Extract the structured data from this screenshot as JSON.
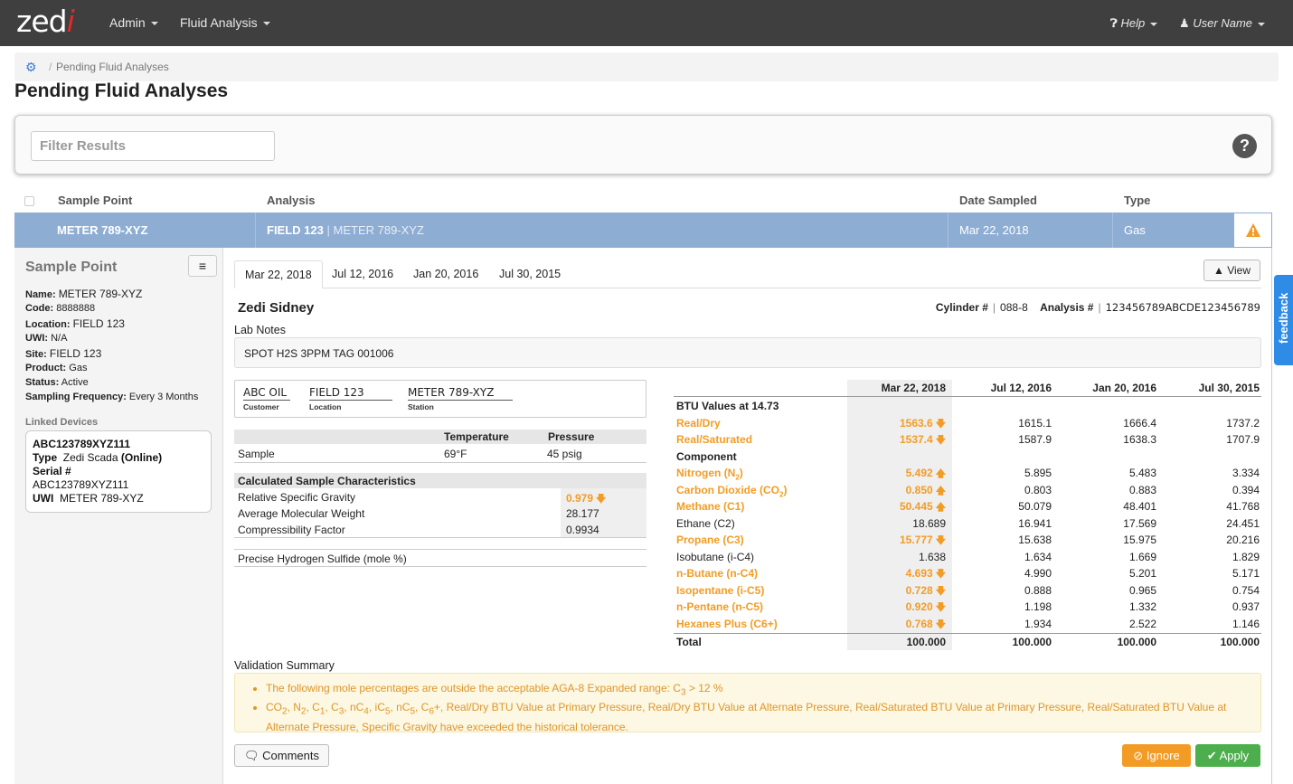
{
  "nav": {
    "logo_main": "zed",
    "logo_i": "i",
    "admin": "Admin",
    "fluid": "Fluid Analysis",
    "help": "Help",
    "user": "User Name"
  },
  "breadcrumb": {
    "sep": "/",
    "current": "Pending Fluid Analyses"
  },
  "page_title": "Pending Fluid Analyses",
  "filter": {
    "placeholder": "Filter Results",
    "help": "?"
  },
  "table": {
    "headers": [
      "Sample Point",
      "Analysis",
      "Date Sampled",
      "Type"
    ],
    "row": {
      "sample_point": "METER 789-XYZ",
      "analysis_field": "FIELD 123",
      "analysis_sep": "|",
      "analysis_meter": "METER 789-XYZ",
      "date": "Mar 22, 2018",
      "type": "Gas"
    }
  },
  "sample_point": {
    "title": "Sample Point",
    "menu": "≡",
    "fields": [
      {
        "label": "Name:",
        "value": "METER 789-XYZ"
      },
      {
        "label": "Code:",
        "value": "8888888"
      },
      {
        "label": "Location:",
        "value": "FIELD 123"
      },
      {
        "label": "UWI:",
        "value": "N/A"
      },
      {
        "label": "Site:",
        "value": "FIELD 123"
      },
      {
        "label": "Product:",
        "value": "Gas"
      },
      {
        "label": "Status:",
        "value": "Active"
      },
      {
        "label": "Sampling Frequency:",
        "value": "Every 3 Months"
      }
    ],
    "linked_label": "Linked Devices",
    "device": {
      "id": "ABC123789XYZ111",
      "type_label": "Type",
      "type_value": "Zedi Scada",
      "type_status": "(Online)",
      "serial_label": "Serial #",
      "serial_value": "ABC123789XYZ111",
      "uwi_label": "UWI",
      "uwi_value": "METER 789-XYZ"
    }
  },
  "tabs": [
    "Mar 22, 2018",
    "Jul 12, 2016",
    "Jan 20, 2016",
    "Jul 30, 2015"
  ],
  "view_btn": "View",
  "lab": {
    "name": "Zedi Sidney",
    "cylinder_label": "Cylinder #",
    "cylinder_value": "088-8",
    "analysis_label": "Analysis #",
    "analysis_value": "123456789ABCDE123456789",
    "notes_label": "Lab Notes",
    "notes": "SPOT H2S 3PPM TAG 001006"
  },
  "customer": {
    "customer": "ABC OIL",
    "customer_label": "Customer",
    "location": "FIELD 123",
    "location_label": "Location",
    "station": "METER 789-XYZ",
    "station_label": "Station"
  },
  "conditions": {
    "temp_header": "Temperature",
    "press_header": "Pressure",
    "row_label": "Sample",
    "temp": "69°F",
    "press": "45 psig"
  },
  "calc": {
    "title": "Calculated Sample Characteristics",
    "rows": [
      {
        "label": "Relative Specific Gravity",
        "value": "0.979"
      },
      {
        "label": "Average Molecular Weight",
        "value": "28.177"
      },
      {
        "label": "Compressibility Factor",
        "value": "0.9934"
      }
    ],
    "h2s": "Precise Hydrogen Sulfide (mole %)"
  },
  "composition": {
    "dates": [
      "Mar 22, 2018",
      "Jul 12, 2016",
      "Jan 20, 2016",
      "Jul 30, 2015"
    ],
    "btu_title": "BTU Values at 14.73",
    "btu_rows": [
      {
        "name": "Real/Dry",
        "vals": [
          "1563.6",
          "1615.1",
          "1666.4",
          "1737.2"
        ],
        "flag": "down"
      },
      {
        "name": "Real/Saturated",
        "vals": [
          "1537.4",
          "1587.9",
          "1638.3",
          "1707.9"
        ],
        "flag": "down"
      }
    ],
    "component_title": "Component",
    "rows": [
      {
        "name": "Nitrogen (N",
        "sub": "2",
        "tail": ")",
        "vals": [
          "5.492",
          "5.895",
          "5.483",
          "3.334"
        ],
        "flag": "up"
      },
      {
        "name": "Carbon Dioxide (CO",
        "sub": "2",
        "tail": ")",
        "vals": [
          "0.850",
          "0.803",
          "0.883",
          "0.394"
        ],
        "flag": "up"
      },
      {
        "name": "Methane (C1)",
        "sub": "",
        "tail": "",
        "vals": [
          "50.445",
          "50.079",
          "48.401",
          "41.768"
        ],
        "flag": "up"
      },
      {
        "name": "Ethane (C2)",
        "sub": "",
        "tail": "",
        "vals": [
          "18.689",
          "16.941",
          "17.569",
          "24.451"
        ],
        "flag": ""
      },
      {
        "name": "Propane (C3)",
        "sub": "",
        "tail": "",
        "vals": [
          "15.777",
          "15.638",
          "15.975",
          "20.216"
        ],
        "flag": "down"
      },
      {
        "name": "Isobutane (i-C4)",
        "sub": "",
        "tail": "",
        "vals": [
          "1.638",
          "1.634",
          "1.669",
          "1.829"
        ],
        "flag": ""
      },
      {
        "name": "n-Butane (n-C4)",
        "sub": "",
        "tail": "",
        "vals": [
          "4.693",
          "4.990",
          "5.201",
          "5.171"
        ],
        "flag": "down"
      },
      {
        "name": "Isopentane (i-C5)",
        "sub": "",
        "tail": "",
        "vals": [
          "0.728",
          "0.888",
          "0.965",
          "0.754"
        ],
        "flag": "down"
      },
      {
        "name": "n-Pentane (n-C5)",
        "sub": "",
        "tail": "",
        "vals": [
          "0.920",
          "1.198",
          "1.332",
          "0.937"
        ],
        "flag": "down"
      },
      {
        "name": "Hexanes Plus (C6+)",
        "sub": "",
        "tail": "",
        "vals": [
          "0.768",
          "1.934",
          "2.522",
          "1.146"
        ],
        "flag": "down"
      }
    ],
    "total_label": "Total",
    "totals": [
      "100.000",
      "100.000",
      "100.000",
      "100.000"
    ]
  },
  "validation": {
    "label": "Validation Summary",
    "item1_pre": "The following mole percentages are outside the acceptable AGA-8 Expanded range: C",
    "item1_sub": "3",
    "item1_post": " > 12 %",
    "item2_html": "CO<sub>2</sub>, N<sub>2</sub>, C<sub>1</sub>, C<sub>3</sub>, nC<sub>4</sub>, iC<sub>5</sub>, nC<sub>5</sub>, C<sub>6</sub>+, Real/Dry BTU Value at Primary Pressure, Real/Dry BTU Value at Alternate Pressure, Real/Saturated BTU Value at Primary Pressure, Real/Saturated BTU Value at Alternate Pressure, Specific Gravity have exceeded the historical tolerance."
  },
  "actions": {
    "comments": "Comments",
    "ignore": "Ignore",
    "apply": "Apply"
  },
  "feedback": "feedback",
  "colors": {
    "nav": "#3f3f3f",
    "selected_row": "#8eadd3",
    "warning": "#f39c25",
    "apply": "#4cae4c",
    "feedback": "#2e8be6"
  }
}
